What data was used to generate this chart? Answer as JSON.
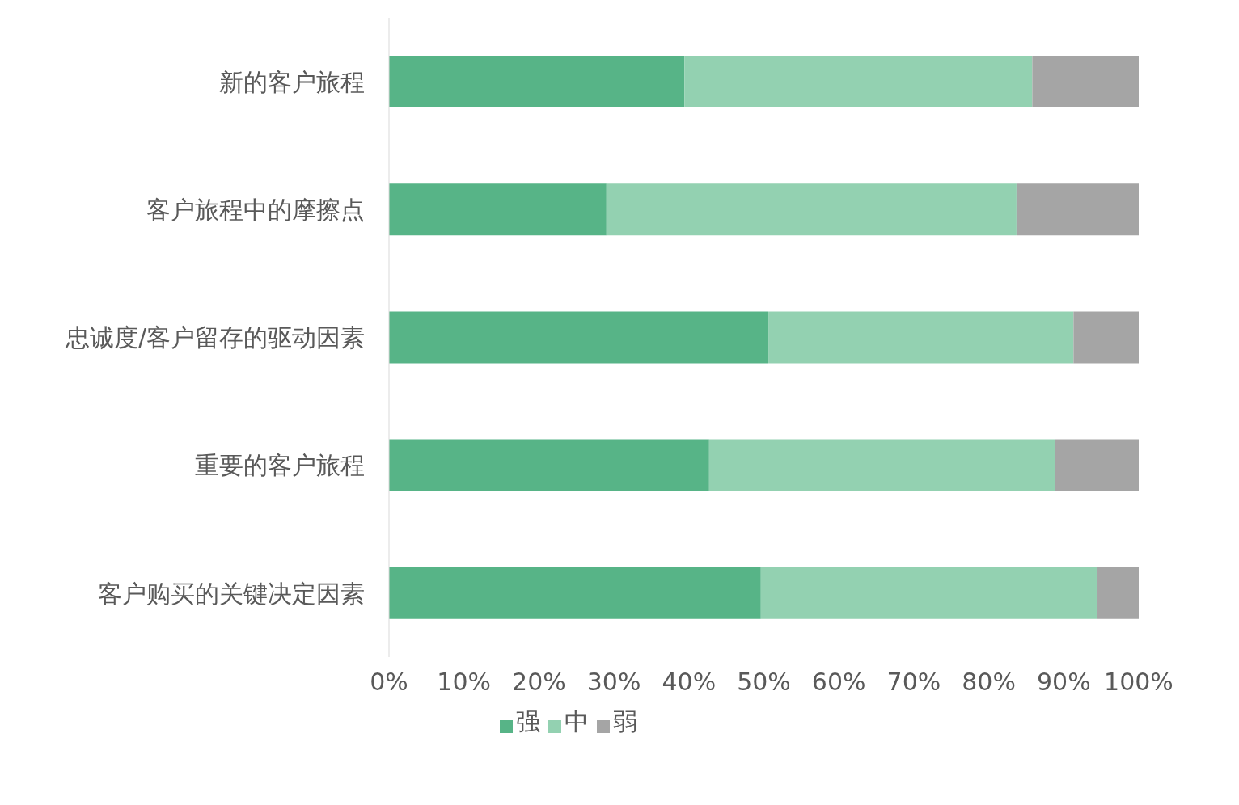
{
  "chart_data": {
    "type": "bar",
    "orientation": "horizontal",
    "stacked": true,
    "categories": [
      "新的客户旅程",
      "客户旅程中的摩擦点",
      "忠诚度/客户留存的驱动因素",
      "重要的客户旅程",
      "客户购买的关键决定因素"
    ],
    "series": [
      {
        "name": "强",
        "color": "#57b487",
        "values": [
          39.4,
          29,
          50.6,
          42.7,
          49.6
        ]
      },
      {
        "name": "中",
        "color": "#93d1b1",
        "values": [
          46.4,
          54.7,
          40.7,
          46.1,
          44.9
        ]
      },
      {
        "name": "弱",
        "color": "#a5a5a5",
        "values": [
          14.2,
          16.3,
          8.7,
          11.2,
          5.5
        ]
      }
    ],
    "xlim": [
      0,
      100
    ],
    "xticks": [
      {
        "value": 0,
        "label": "0%"
      },
      {
        "value": 10,
        "label": "10%"
      },
      {
        "value": 20,
        "label": "20%"
      },
      {
        "value": 30,
        "label": "30%"
      },
      {
        "value": 40,
        "label": "40%"
      },
      {
        "value": 50,
        "label": "50%"
      },
      {
        "value": 60,
        "label": "60%"
      },
      {
        "value": 70,
        "label": "70%"
      },
      {
        "value": 80,
        "label": "80%"
      },
      {
        "value": 90,
        "label": "90%"
      },
      {
        "value": 100,
        "label": "100%"
      }
    ],
    "grid": false,
    "legend": "bottom"
  }
}
